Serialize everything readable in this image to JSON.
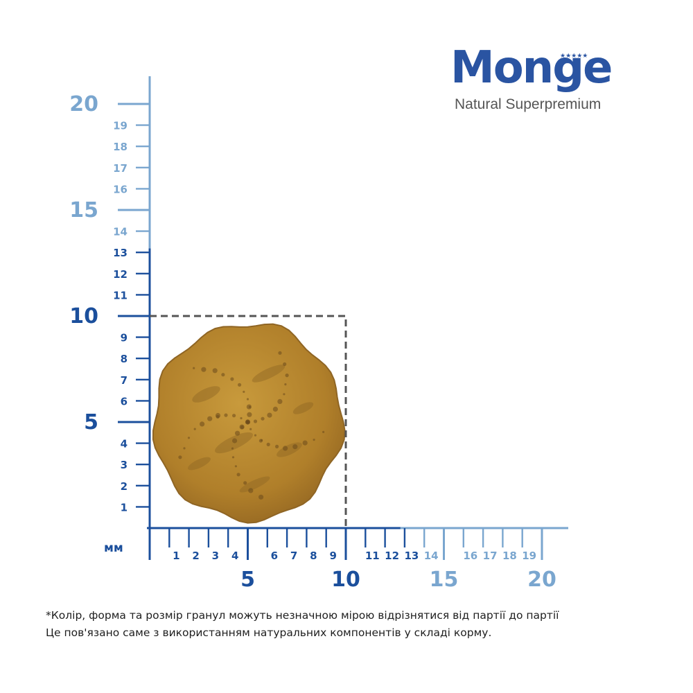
{
  "brand": {
    "name": "Monge",
    "stars": "★★★★★",
    "tagline": "Natural Superpremium"
  },
  "ruler": {
    "unit_label": "мм",
    "vertical_ticks": [
      1,
      2,
      3,
      4,
      5,
      6,
      7,
      8,
      9,
      10,
      11,
      12,
      13,
      14,
      15,
      16,
      17,
      18,
      19,
      20
    ],
    "horizontal_ticks": [
      1,
      2,
      3,
      4,
      5,
      6,
      7,
      8,
      9,
      10,
      11,
      12,
      13,
      14,
      15,
      16,
      17,
      18,
      19,
      20
    ],
    "major_step": 5,
    "dark_range_max": 13,
    "kibble_outline_size_mm": 10,
    "colors": {
      "dark": "#1b4f9c",
      "light": "#7aa6cf",
      "dashed_box": "#555555"
    }
  },
  "kibble": {
    "icon": "kibble-pellet",
    "colors": {
      "base": "#b8862c",
      "shade": "#8f6524",
      "speck": "#6b4a1c"
    }
  },
  "footnote": {
    "line1": "*Колір, форма та розмір гранул можуть незначною мірою відрізнятися від партії до партії",
    "line2": "Це пов'язано саме з використанням натуральних компонентів у складі корму."
  }
}
